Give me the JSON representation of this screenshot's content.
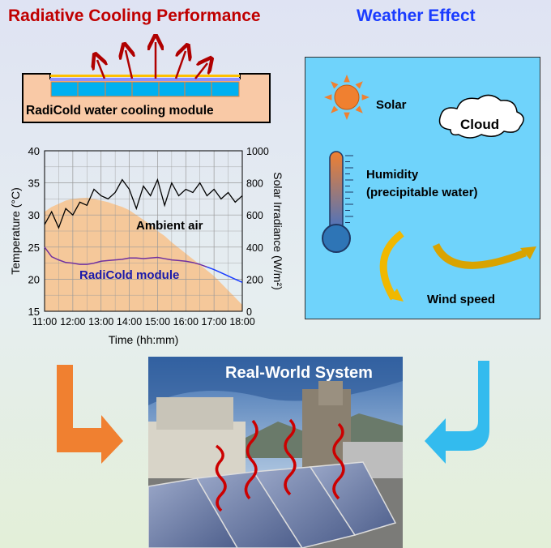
{
  "titles": {
    "left": "Radiative Cooling Performance",
    "right": "Weather Effect"
  },
  "module_label": "RadiCold water cooling module",
  "weather": {
    "solar": "Solar",
    "cloud": "Cloud",
    "humidity": "Humidity",
    "humidity_sub": "(precipitable water)",
    "wind": "Wind speed"
  },
  "photo_title": "Real-World System",
  "colors": {
    "left_title": "#c00000",
    "right_title": "#1a3cff",
    "weather_box": "#6fd3fb",
    "solar_fill": "#f5c89a",
    "ambient": "#000000",
    "module_purple": "#7030a0",
    "module_blue": "#1a3cff",
    "left_arrow": "#f08030",
    "right_arrow": "#33bbee"
  },
  "chart_data": {
    "type": "line",
    "xlabel": "Time (hh:mm)",
    "ylabel": "Temperature (°C)",
    "y2label": "Solar Irradiance (W/m²)",
    "xticks": [
      "11:00",
      "12:00",
      "13:00",
      "14:00",
      "15:00",
      "16:00",
      "17:00",
      "18:00"
    ],
    "yticks": [
      15,
      20,
      25,
      30,
      35,
      40
    ],
    "y2ticks": [
      0,
      200,
      400,
      600,
      800,
      1000
    ],
    "ylim": [
      15,
      40
    ],
    "y2lim": [
      0,
      1000
    ],
    "grid": true,
    "x_hours": [
      11,
      11.25,
      11.5,
      11.75,
      12,
      12.25,
      12.5,
      12.75,
      13,
      13.25,
      13.5,
      13.75,
      14,
      14.25,
      14.5,
      14.75,
      15,
      15.25,
      15.5,
      15.75,
      16,
      16.25,
      16.5,
      16.75,
      17,
      17.25,
      17.5,
      17.75,
      18
    ],
    "series": [
      {
        "name": "Ambient air",
        "axis": "left",
        "values": [
          28.5,
          30.5,
          28,
          31,
          30,
          32,
          31.5,
          34,
          33,
          32.5,
          33.5,
          35.5,
          34,
          31,
          34.5,
          33,
          35.5,
          31.5,
          35,
          33,
          34,
          33.5,
          35,
          33,
          34,
          32.5,
          33.5,
          32,
          33
        ]
      },
      {
        "name": "RadiCold module",
        "axis": "left",
        "values": [
          25,
          23.5,
          23,
          22.6,
          22.5,
          22.3,
          22.3,
          22.5,
          22.8,
          22.9,
          23,
          23.1,
          23.3,
          23.3,
          23.2,
          23.3,
          23.4,
          23.2,
          23,
          22.9,
          22.8,
          22.6,
          22.3,
          21.9,
          21.5,
          21,
          20.5,
          20,
          19.5
        ]
      },
      {
        "name": "Solar irradiance",
        "axis": "right",
        "type": "area",
        "values": [
          620,
          650,
          670,
          690,
          700,
          705,
          708,
          700,
          690,
          680,
          665,
          650,
          630,
          600,
          570,
          540,
          500,
          470,
          430,
          395,
          360,
          325,
          290,
          255,
          220,
          175,
          130,
          85,
          40
        ]
      }
    ]
  }
}
